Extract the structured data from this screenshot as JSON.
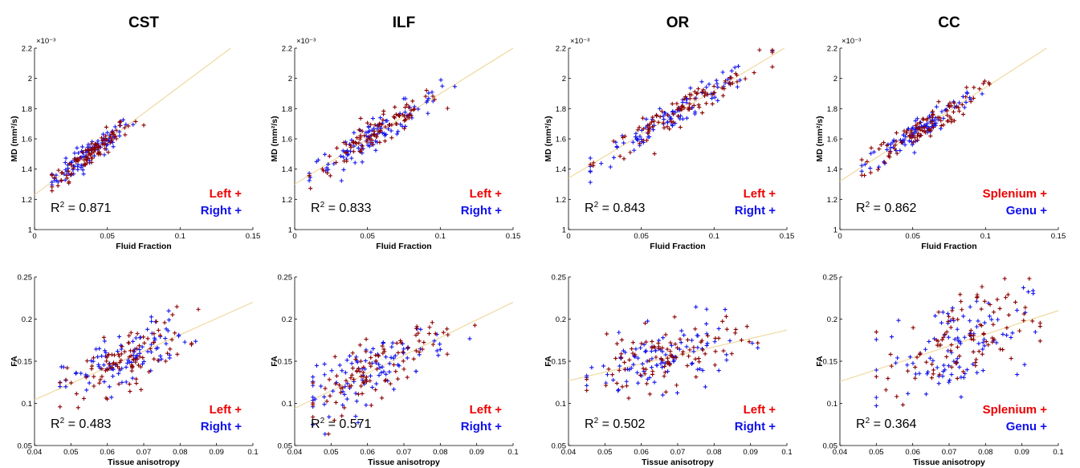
{
  "colors": {
    "left": "#8b0000",
    "right": "#1515ee",
    "fit": "#f0d9a0",
    "legend_left": "#ee0000",
    "legend_right": "#1010ee"
  },
  "chart_data": [
    {
      "type": "scatter",
      "column": 0,
      "row": 0,
      "title": "CST",
      "xlabel": "Fluid Fraction",
      "ylabel": "MD (mm²/s)",
      "exponent": "×10⁻³",
      "xlim": [
        0,
        0.15
      ],
      "ylim": [
        1,
        2.2
      ],
      "xticks": [
        0,
        0.05,
        0.1,
        0.15
      ],
      "xtick_labels": [
        "0",
        "0.05",
        "0.1",
        "0.15"
      ],
      "yticks": [
        1,
        1.2,
        1.4,
        1.6,
        1.8,
        2,
        2.2
      ],
      "ytick_labels": [
        "1",
        "1.2",
        "1.4",
        "1.6",
        "1.8",
        "2",
        "2.2"
      ],
      "fit": {
        "slope": 7.2,
        "intercept": 1.23
      },
      "cloud": {
        "xmin": 0.012,
        "xmax": 0.075,
        "xmean": 0.038,
        "noise": 0.04
      },
      "r2_label": "R",
      "r2_value": " = 0.871",
      "legend": [
        "Left +",
        "Right +"
      ]
    },
    {
      "type": "scatter",
      "column": 1,
      "row": 0,
      "title": "ILF",
      "xlabel": "Fluid Fraction",
      "ylabel": "MD (mm²/s)",
      "exponent": "×10⁻³",
      "xlim": [
        0,
        0.15
      ],
      "ylim": [
        1,
        2.2
      ],
      "xticks": [
        0,
        0.05,
        0.1,
        0.15
      ],
      "xtick_labels": [
        "0",
        "0.05",
        "0.1",
        "0.15"
      ],
      "yticks": [
        1,
        1.2,
        1.4,
        1.6,
        1.8,
        2,
        2.2
      ],
      "ytick_labels": [
        "1",
        "1.2",
        "1.4",
        "1.6",
        "1.8",
        "2",
        "2.2"
      ],
      "fit": {
        "slope": 6.0,
        "intercept": 1.3
      },
      "cloud": {
        "xmin": 0.01,
        "xmax": 0.11,
        "xmean": 0.055,
        "noise": 0.05
      },
      "r2_label": "R",
      "r2_value": " = 0.833",
      "legend": [
        "Left +",
        "Right +"
      ]
    },
    {
      "type": "scatter",
      "column": 2,
      "row": 0,
      "title": "OR",
      "xlabel": "Fluid Fraction",
      "ylabel": "MD (mm²/s)",
      "exponent": "×10⁻³",
      "xlim": [
        0,
        0.15
      ],
      "ylim": [
        1,
        2.2
      ],
      "xticks": [
        0,
        0.05,
        0.1,
        0.15
      ],
      "xtick_labels": [
        "0",
        "0.05",
        "0.1",
        "0.15"
      ],
      "yticks": [
        1,
        1.2,
        1.4,
        1.6,
        1.8,
        2,
        2.2
      ],
      "ytick_labels": [
        "1",
        "1.2",
        "1.4",
        "1.6",
        "1.8",
        "2",
        "2.2"
      ],
      "fit": {
        "slope": 5.8,
        "intercept": 1.34
      },
      "cloud": {
        "xmin": 0.015,
        "xmax": 0.14,
        "xmean": 0.075,
        "noise": 0.045
      },
      "r2_label": "R",
      "r2_value": " = 0.843",
      "legend": [
        "Left +",
        "Right +"
      ]
    },
    {
      "type": "scatter",
      "column": 3,
      "row": 0,
      "title": "CC",
      "xlabel": "Fluid Fraction",
      "ylabel": "MD (mm²/s)",
      "exponent": "×10⁻³",
      "xlim": [
        0,
        0.15
      ],
      "ylim": [
        1,
        2.2
      ],
      "xticks": [
        0,
        0.05,
        0.1,
        0.15
      ],
      "xtick_labels": [
        "0",
        "0.05",
        "0.1",
        "0.15"
      ],
      "yticks": [
        1,
        1.2,
        1.4,
        1.6,
        1.8,
        2,
        2.2
      ],
      "ytick_labels": [
        "1",
        "1.2",
        "1.4",
        "1.6",
        "1.8",
        "2",
        "2.2"
      ],
      "fit": {
        "slope": 6.2,
        "intercept": 1.32
      },
      "cloud": {
        "xmin": 0.015,
        "xmax": 0.105,
        "xmean": 0.055,
        "noise": 0.045
      },
      "r2_label": "R",
      "r2_value": " = 0.862",
      "legend": [
        "Splenium +",
        "Genu +"
      ]
    },
    {
      "type": "scatter",
      "column": 0,
      "row": 1,
      "xlabel": "Tissue anisotropy",
      "ylabel": "FA",
      "xlim": [
        0.04,
        0.1
      ],
      "ylim": [
        0.05,
        0.25
      ],
      "xticks": [
        0.04,
        0.05,
        0.06,
        0.07,
        0.08,
        0.09,
        0.1
      ],
      "xtick_labels": [
        "0.04",
        "0.05",
        "0.06",
        "0.07",
        "0.08",
        "0.09",
        "0.1"
      ],
      "yticks": [
        0.05,
        0.1,
        0.15,
        0.2,
        0.25
      ],
      "ytick_labels": [
        "0.05",
        "0.1",
        "0.15",
        "0.2",
        "0.25"
      ],
      "fit": {
        "slope": 1.93,
        "intercept": 0.027
      },
      "cloud": {
        "xmin": 0.047,
        "xmax": 0.085,
        "xmean": 0.065,
        "noise": 0.017
      },
      "r2_label": "R",
      "r2_value": " = 0.483",
      "legend": [
        "Left +",
        "Right +"
      ]
    },
    {
      "type": "scatter",
      "column": 1,
      "row": 1,
      "xlabel": "Tissue anisotropy",
      "ylabel": "FA",
      "xlim": [
        0.04,
        0.1
      ],
      "ylim": [
        0.05,
        0.25
      ],
      "xticks": [
        0.04,
        0.05,
        0.06,
        0.07,
        0.08,
        0.09,
        0.1
      ],
      "xtick_labels": [
        "0.04",
        "0.05",
        "0.06",
        "0.07",
        "0.08",
        "0.09",
        "0.1"
      ],
      "yticks": [
        0.05,
        0.1,
        0.15,
        0.2,
        0.25
      ],
      "ytick_labels": [
        "0.05",
        "0.1",
        "0.15",
        "0.2",
        "0.25"
      ],
      "fit": {
        "slope": 2.1,
        "intercept": 0.01
      },
      "cloud": {
        "xmin": 0.045,
        "xmax": 0.09,
        "xmean": 0.062,
        "noise": 0.017
      },
      "r2_label": "R",
      "r2_value": " = 0.571",
      "legend": [
        "Left +",
        "Right +"
      ]
    },
    {
      "type": "scatter",
      "column": 2,
      "row": 1,
      "xlabel": "Tissue anisotropy",
      "ylabel": "FA",
      "xlim": [
        0.04,
        0.1
      ],
      "ylim": [
        0.05,
        0.25
      ],
      "xticks": [
        0.04,
        0.05,
        0.06,
        0.07,
        0.08,
        0.09,
        0.1
      ],
      "xtick_labels": [
        "0.04",
        "0.05",
        "0.06",
        "0.07",
        "0.08",
        "0.09",
        "0.1"
      ],
      "yticks": [
        0.05,
        0.1,
        0.15,
        0.2,
        0.25
      ],
      "ytick_labels": [
        "0.05",
        "0.1",
        "0.15",
        "0.2",
        "0.25"
      ],
      "fit": {
        "slope": 1.0,
        "intercept": 0.087
      },
      "cloud": {
        "xmin": 0.045,
        "xmax": 0.092,
        "xmean": 0.066,
        "noise": 0.018
      },
      "r2_label": "R",
      "r2_value": " = 0.502",
      "legend": [
        "Left +",
        "Right +"
      ]
    },
    {
      "type": "scatter",
      "column": 3,
      "row": 1,
      "xlabel": "Tissue anisotropy",
      "ylabel": "FA",
      "xlim": [
        0.04,
        0.1
      ],
      "ylim": [
        0.05,
        0.25
      ],
      "xticks": [
        0.04,
        0.05,
        0.06,
        0.07,
        0.08,
        0.09,
        0.1
      ],
      "xtick_labels": [
        "0.04",
        "0.05",
        "0.06",
        "0.07",
        "0.08",
        "0.09",
        "0.1"
      ],
      "yticks": [
        0.05,
        0.1,
        0.15,
        0.2,
        0.25
      ],
      "ytick_labels": [
        "0.05",
        "0.1",
        "0.15",
        "0.2",
        "0.25"
      ],
      "fit": {
        "slope": 1.4,
        "intercept": 0.07
      },
      "cloud": {
        "xmin": 0.05,
        "xmax": 0.095,
        "xmean": 0.072,
        "noise": 0.028
      },
      "r2_label": "R",
      "r2_value": " = 0.364",
      "legend": [
        "Splenium +",
        "Genu +"
      ]
    }
  ]
}
